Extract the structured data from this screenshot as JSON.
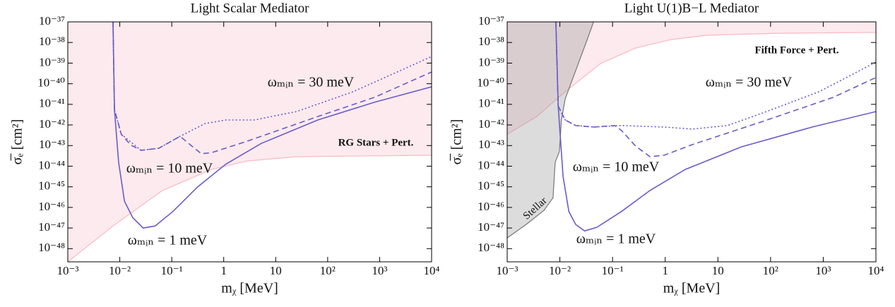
{
  "chart_data": [
    {
      "type": "line",
      "title": "Light Scalar Mediator",
      "xlabel": "mᵪ [MeV]",
      "ylabel": "σ̅ₑ [cm²]",
      "xscale": "log",
      "yscale": "log",
      "xlim": [
        0.001,
        10000
      ],
      "ylim": [
        2.29e-49,
        1e-37
      ],
      "xticks": [
        {
          "value": 0.001,
          "label": "10⁻³"
        },
        {
          "value": 0.01,
          "label": "10⁻²"
        },
        {
          "value": 0.1,
          "label": "10⁻¹"
        },
        1,
        10,
        {
          "value": 100,
          "label": "10²"
        },
        {
          "value": 1000,
          "label": "10³"
        },
        {
          "value": 10000,
          "label": "10⁴"
        }
      ],
      "yticks": [
        {
          "value": 1e-37,
          "label": "10⁻³⁷"
        },
        {
          "value": 1e-38,
          "label": "10⁻³⁸"
        },
        {
          "value": 1e-39,
          "label": "10⁻³⁹"
        },
        {
          "value": 1e-40,
          "label": "10⁻⁴⁰"
        },
        {
          "value": 1e-41,
          "label": "10⁻⁴¹"
        },
        {
          "value": 1e-42,
          "label": "10⁻⁴²"
        },
        {
          "value": 1e-43,
          "label": "10⁻⁴³"
        },
        {
          "value": 1e-44,
          "label": "10⁻⁴⁴"
        },
        {
          "value": 1e-45,
          "label": "10⁻⁴⁵"
        },
        {
          "value": 1e-46,
          "label": "10⁻⁴⁶"
        },
        {
          "value": 1e-47,
          "label": "10⁻⁴⁷"
        },
        {
          "value": 1e-48,
          "label": "10⁻⁴⁸"
        }
      ],
      "series": [
        {
          "fill": "#fdeaee",
          "color": "#f7b9c2",
          "style": "solid",
          "x": [
            0.001,
            0.00741,
            0.0661,
            0.589,
            2.82,
            25.1,
            10000
          ],
          "values": [
            2.29e-49,
            1.26e-47,
            6.61e-46,
            6.92e-45,
            1.78e-44,
            2.88e-44,
            3.39e-44
          ]
        },
        {
          "color": "#6a5cc8",
          "style": "solid",
          "x": [
            0.0074,
            0.0079,
            0.0095,
            0.0123,
            0.0178,
            0.0282,
            0.0479,
            0.105,
            0.316,
            1.1,
            5.25,
            64.6,
            794,
            10000
          ],
          "values": [
            1e-37,
            5.62e-42,
            1.58e-44,
            2e-46,
            3.16e-47,
            1e-47,
            1.26e-47,
            6.31e-47,
            1e-45,
            1.26e-44,
            1.26e-43,
            1.74e-42,
            1.26e-41,
            7.08e-41
          ]
        },
        {
          "color": "#6a5cc8",
          "style": "dashed",
          "x": [
            0.0074,
            0.0079,
            0.0107,
            0.0162,
            0.0257,
            0.0562,
            0.145,
            0.229,
            0.372,
            0.589,
            2.82,
            64.6,
            794,
            10000
          ],
          "values": [
            1e-37,
            5.62e-42,
            3.55e-43,
            1.07e-43,
            5.89e-44,
            7.41e-44,
            2.82e-43,
            1.07e-43,
            3.98e-44,
            4.57e-44,
            1.62e-43,
            2.57e-42,
            2.19e-41,
            3.72e-40
          ]
        },
        {
          "color": "#6a5cc8",
          "style": "dotted",
          "x": [
            0.0074,
            0.0079,
            0.0107,
            0.0257,
            0.0562,
            0.145,
            0.437,
            1.1,
            3.89,
            25.1,
            309,
            10000
          ],
          "values": [
            1e-37,
            5.62e-42,
            3.55e-43,
            5.89e-44,
            7.41e-44,
            2.82e-43,
            1.17e-42,
            1.74e-42,
            1.74e-42,
            4.47e-42,
            4.07e-41,
            2.09e-39
          ]
        }
      ],
      "annotations": [
        {
          "text": "ωₘᵢₙ = 30 meV",
          "color": "#8a7dd4"
        },
        {
          "text": "ωₘᵢₙ = 10 meV",
          "color": "#8a7dd4"
        },
        {
          "text": "ωₘᵢₙ = 1 meV",
          "color": "#8a7dd4"
        },
        {
          "text": "RG Stars + Pert.",
          "color": "#e8141c"
        }
      ]
    },
    {
      "type": "line",
      "title": "Light U(1)B−L Mediator",
      "xlabel": "mᵪ [MeV]",
      "ylabel": "σ̅ₑ [cm²]",
      "xscale": "log",
      "yscale": "log",
      "xlim": [
        0.001,
        10000
      ],
      "ylim": [
        2.29e-49,
        1e-37
      ],
      "xticks": [
        {
          "value": 0.001,
          "label": "10⁻³"
        },
        {
          "value": 0.01,
          "label": "10⁻²"
        },
        {
          "value": 0.1,
          "label": "10⁻¹"
        },
        1,
        10,
        {
          "value": 100,
          "label": "10²"
        },
        {
          "value": 1000,
          "label": "10³"
        },
        {
          "value": 10000,
          "label": "10⁴"
        }
      ],
      "yticks": [
        {
          "value": 1e-37,
          "label": "10⁻³⁷"
        },
        {
          "value": 1e-38,
          "label": "10⁻³⁸"
        },
        {
          "value": 1e-39,
          "label": "10⁻³⁹"
        },
        {
          "value": 1e-40,
          "label": "10⁻⁴⁰"
        },
        {
          "value": 1e-41,
          "label": "10⁻⁴¹"
        },
        {
          "value": 1e-42,
          "label": "10⁻⁴²"
        },
        {
          "value": 1e-43,
          "label": "10⁻⁴³"
        },
        {
          "value": 1e-44,
          "label": "10⁻⁴⁴"
        },
        {
          "value": 1e-45,
          "label": "10⁻⁴⁵"
        },
        {
          "value": 1e-46,
          "label": "10⁻⁴⁶"
        },
        {
          "value": 1e-47,
          "label": "10⁻⁴⁷"
        },
        {
          "value": 1e-48,
          "label": "10⁻⁴⁸"
        }
      ],
      "series": [
        {
          "fill": "#fdeaee",
          "color": "#f7b9c2",
          "style": "solid",
          "x": [
            0.001,
            0.00363,
            0.0126,
            0.0589,
            0.275,
            1.29,
            6.03,
            132,
            10000
          ],
          "values": [
            3.55e-43,
            2.57e-42,
            4.07e-41,
            9.55e-40,
            5.37e-39,
            1.38e-38,
            2.24e-38,
            2.82e-38,
            3.09e-38
          ]
        },
        {
          "fill": "rgba(140,140,140,0.3)",
          "color": "#777777",
          "style": "solid",
          "x": [
            0.001,
            0.00229,
            0.00501,
            0.00741,
            0.00813,
            0.00977,
            0.0107,
            0.0126,
            0.02,
            0.0316,
            0.0437
          ],
          "values": [
            3.31e-48,
            1.48e-47,
            7.24e-47,
            2.95e-46,
            1.51e-44,
            5.01e-44,
            1.74e-42,
            1.86e-41,
            4.37e-40,
            1.02e-38,
            1e-37
          ]
        },
        {
          "color": "#6a5cc8",
          "style": "solid",
          "x": [
            0.0084,
            0.0093,
            0.0115,
            0.0148,
            0.02,
            0.0295,
            0.0501,
            0.148,
            0.513,
            2.4,
            28.2,
            617,
            10000
          ],
          "values": [
            1e-37,
            8.32e-42,
            3.16e-45,
            6.31e-47,
            1.48e-47,
            7.24e-48,
            1.07e-47,
            6.31e-47,
            6.61e-46,
            6.92e-45,
            8.71e-44,
            7.94e-43,
            4.47e-42
          ]
        },
        {
          "color": "#6a5cc8",
          "style": "dashed",
          "x": [
            0.0084,
            0.0093,
            0.0126,
            0.02,
            0.0437,
            0.11,
            0.148,
            0.275,
            0.513,
            0.955,
            3.24,
            70.8,
            1549,
            10000
          ],
          "values": [
            1e-37,
            8.32e-42,
            1.74e-42,
            9.33e-43,
            7.94e-43,
            9.33e-43,
            5.37e-43,
            9.33e-44,
            2.88e-44,
            3.39e-44,
            1.1e-43,
            1.48e-42,
            2.19e-41,
            2e-40
          ]
        },
        {
          "color": "#6a5cc8",
          "style": "dotted",
          "x": [
            0.0084,
            0.0093,
            0.0126,
            0.02,
            0.0437,
            0.148,
            0.955,
            3.24,
            15.1,
            70.8,
            832,
            10000
          ],
          "values": [
            1e-37,
            8.32e-42,
            1.74e-42,
            9.33e-43,
            7.94e-43,
            9.33e-43,
            7.94e-43,
            6.31e-43,
            9.33e-43,
            3.8e-42,
            4.07e-41,
            1.12e-39
          ]
        }
      ],
      "annotations": [
        {
          "text": "ωₘᵢₙ = 30 meV",
          "color": "#8a7dd4"
        },
        {
          "text": "ωₘᵢₙ = 10 meV",
          "color": "#8a7dd4"
        },
        {
          "text": "ωₘᵢₙ = 1 meV",
          "color": "#8a7dd4"
        },
        {
          "text": "Fifth Force + Pert.",
          "color": "#e8141c"
        },
        {
          "text": "Stellar",
          "color": "#555555"
        }
      ]
    }
  ]
}
